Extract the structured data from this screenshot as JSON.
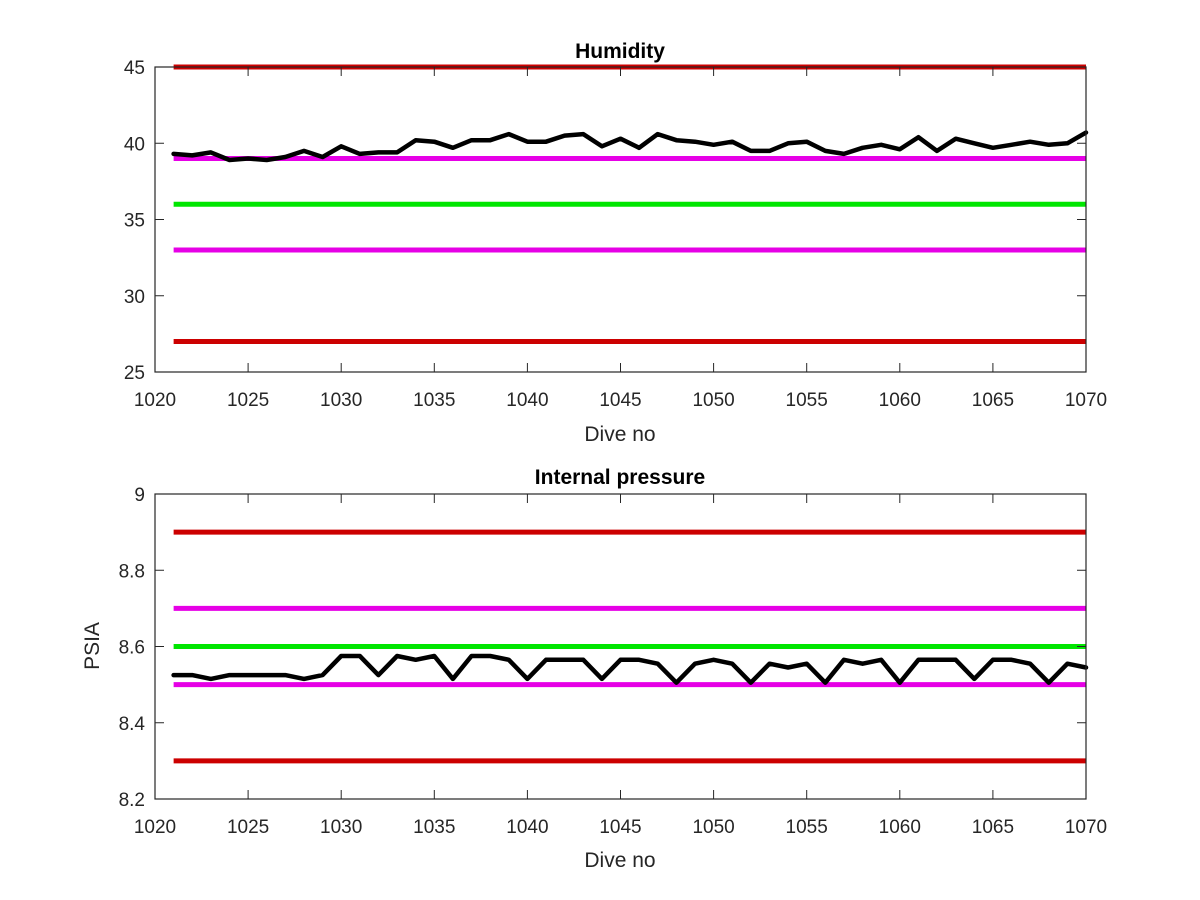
{
  "chart_data": [
    {
      "type": "line",
      "title": "Humidity",
      "xlabel": "Dive no",
      "ylabel": "",
      "xlim": [
        1020,
        1070
      ],
      "ylim": [
        25,
        45
      ],
      "xticks": [
        1020,
        1025,
        1030,
        1035,
        1040,
        1045,
        1050,
        1055,
        1060,
        1065,
        1070
      ],
      "yticks": [
        25,
        30,
        35,
        40,
        45
      ],
      "grid": false,
      "reference_lines": [
        {
          "y": 45,
          "color": "#cc0000"
        },
        {
          "y": 39,
          "color": "#e600e6"
        },
        {
          "y": 36,
          "color": "#00e600"
        },
        {
          "y": 33,
          "color": "#e600e6"
        },
        {
          "y": 27,
          "color": "#cc0000"
        }
      ],
      "series": [
        {
          "color": "#000000",
          "x": [
            1021,
            1022,
            1023,
            1024,
            1025,
            1026,
            1027,
            1028,
            1029,
            1030,
            1031,
            1032,
            1033,
            1034,
            1035,
            1036,
            1037,
            1038,
            1039,
            1040,
            1041,
            1042,
            1043,
            1044,
            1045,
            1046,
            1047,
            1048,
            1049,
            1050,
            1051,
            1052,
            1053,
            1054,
            1055,
            1056,
            1057,
            1058,
            1059,
            1060,
            1061,
            1062,
            1063,
            1064,
            1065,
            1066,
            1067,
            1068,
            1069,
            1070
          ],
          "y": [
            39.3,
            39.2,
            39.4,
            38.9,
            39.0,
            38.9,
            39.1,
            39.5,
            39.1,
            39.8,
            39.3,
            39.4,
            39.4,
            40.2,
            40.1,
            39.7,
            40.2,
            40.2,
            40.6,
            40.1,
            40.1,
            40.5,
            40.6,
            39.8,
            40.3,
            39.7,
            40.6,
            40.2,
            40.1,
            39.9,
            40.1,
            39.5,
            39.5,
            40.0,
            40.1,
            39.5,
            39.3,
            39.7,
            39.9,
            39.6,
            40.4,
            39.5,
            40.3,
            40.0,
            39.7,
            39.9,
            40.1,
            39.9,
            40.0,
            40.7
          ]
        }
      ]
    },
    {
      "type": "line",
      "title": "Internal pressure",
      "xlabel": "Dive no",
      "ylabel": "PSIA",
      "xlim": [
        1020,
        1070
      ],
      "ylim": [
        8.2,
        9.0
      ],
      "xticks": [
        1020,
        1025,
        1030,
        1035,
        1040,
        1045,
        1050,
        1055,
        1060,
        1065,
        1070
      ],
      "yticks": [
        8.2,
        8.4,
        8.6,
        8.8,
        9.0
      ],
      "ytick_labels": [
        "8.2",
        "8.4",
        "8.6",
        "8.8",
        "9"
      ],
      "grid": false,
      "reference_lines": [
        {
          "y": 8.9,
          "color": "#cc0000"
        },
        {
          "y": 8.7,
          "color": "#e600e6"
        },
        {
          "y": 8.6,
          "color": "#00e600"
        },
        {
          "y": 8.5,
          "color": "#e600e6"
        },
        {
          "y": 8.3,
          "color": "#cc0000"
        }
      ],
      "series": [
        {
          "color": "#000000",
          "x": [
            1021,
            1022,
            1023,
            1024,
            1025,
            1026,
            1027,
            1028,
            1029,
            1030,
            1031,
            1032,
            1033,
            1034,
            1035,
            1036,
            1037,
            1038,
            1039,
            1040,
            1041,
            1042,
            1043,
            1044,
            1045,
            1046,
            1047,
            1048,
            1049,
            1050,
            1051,
            1052,
            1053,
            1054,
            1055,
            1056,
            1057,
            1058,
            1059,
            1060,
            1061,
            1062,
            1063,
            1064,
            1065,
            1066,
            1067,
            1068,
            1069,
            1070
          ],
          "y": [
            8.525,
            8.525,
            8.515,
            8.525,
            8.525,
            8.525,
            8.525,
            8.515,
            8.525,
            8.575,
            8.575,
            8.525,
            8.575,
            8.565,
            8.575,
            8.515,
            8.575,
            8.575,
            8.565,
            8.515,
            8.565,
            8.565,
            8.565,
            8.515,
            8.565,
            8.565,
            8.555,
            8.505,
            8.555,
            8.565,
            8.555,
            8.505,
            8.555,
            8.545,
            8.555,
            8.505,
            8.565,
            8.555,
            8.565,
            8.505,
            8.565,
            8.565,
            8.565,
            8.515,
            8.565,
            8.565,
            8.555,
            8.505,
            8.555,
            8.545
          ]
        }
      ]
    }
  ]
}
